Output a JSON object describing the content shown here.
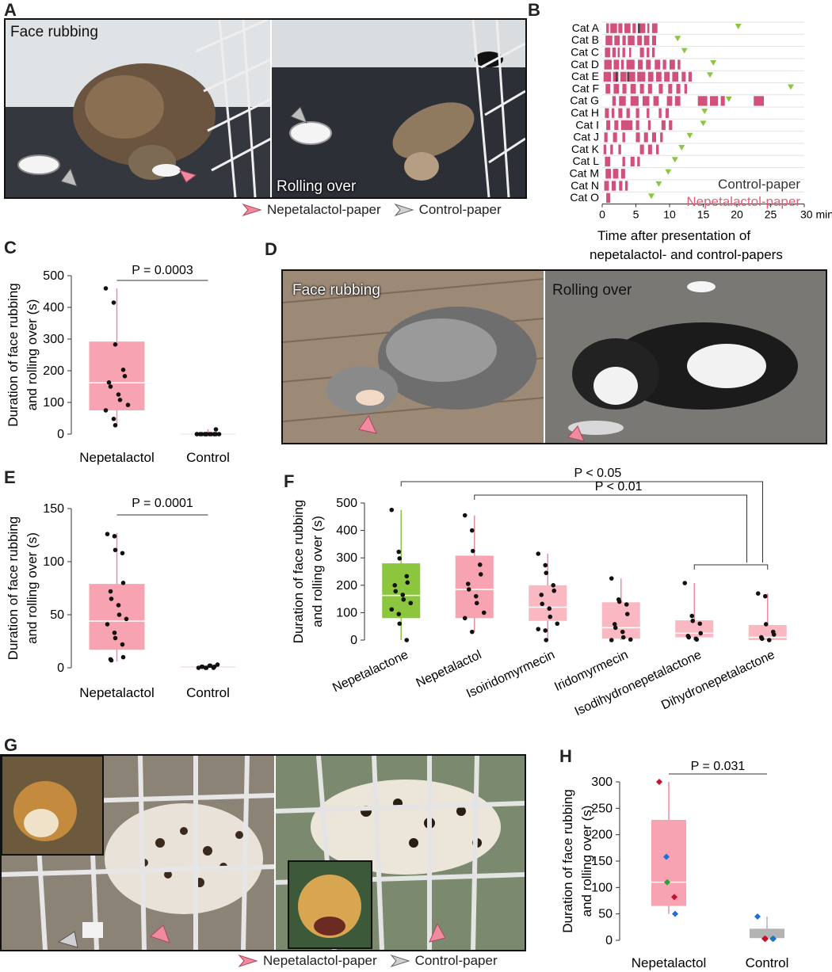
{
  "panels": {
    "A": "A",
    "B": "B",
    "C": "C",
    "D": "D",
    "E": "E",
    "F": "F",
    "G": "G",
    "H": "H"
  },
  "panelA": {
    "label_left": "Face rubbing",
    "label_right": "Rolling over",
    "legend_nepeta": "Nepetalactol-paper",
    "legend_control": "Control-paper"
  },
  "panelD": {
    "label_left": "Face rubbing",
    "label_right": "Rolling over"
  },
  "panelG": {
    "legend_nepeta": "Nepetalactol-paper",
    "legend_control": "Control-paper"
  },
  "colors": {
    "pink": "#f08a9e",
    "pink_dark": "#e0607a",
    "box_pink": "#f7a3b1",
    "box_light": "#f9b8c2",
    "green": "#8cc63f",
    "gray": "#b3b3b3",
    "gray_arrow": "#bdbdbd",
    "raster": "#d0527a",
    "triangle": "#8cc63f"
  },
  "chart_data": [
    {
      "panel": "B",
      "type": "raster",
      "categories": [
        "Cat A",
        "Cat B",
        "Cat C",
        "Cat D",
        "Cat E",
        "Cat F",
        "Cat G",
        "Cat H",
        "Cat I",
        "Cat J",
        "Cat K",
        "Cat L",
        "Cat M",
        "Cat N",
        "Cat O"
      ],
      "xticks": [
        "0",
        "5",
        "10",
        "15",
        "20",
        "25",
        "30 min"
      ],
      "xlim": [
        0,
        30
      ],
      "xlabel_line1": "Time after presentation of",
      "xlabel_line2": "nepetalactol- and control-papers",
      "legend_control": "Control-paper",
      "legend_nepeta": "Nepetalactol-paper",
      "bouts": [
        [
          [
            0.6,
            1.0
          ],
          [
            1.2,
            2.2
          ],
          [
            2.4,
            3.0
          ],
          [
            3.3,
            4.2
          ],
          [
            4.5,
            5.0
          ],
          [
            5.3,
            6.4
          ],
          [
            6.7,
            7.0
          ],
          [
            7.4,
            8.2
          ]
        ],
        [
          [
            0.5,
            1.5
          ],
          [
            1.8,
            2.6
          ],
          [
            3.0,
            3.5
          ],
          [
            3.8,
            4.8
          ],
          [
            5.2,
            5.9
          ],
          [
            6.2,
            7.0
          ],
          [
            7.4,
            8.0
          ]
        ],
        [
          [
            0.4,
            1.2
          ],
          [
            1.5,
            2.0
          ],
          [
            2.3,
            2.6
          ],
          [
            3.0,
            3.4
          ],
          [
            4.0,
            4.3
          ],
          [
            5.6,
            6.2
          ],
          [
            6.6,
            7.0
          ],
          [
            7.4,
            7.8
          ]
        ],
        [
          [
            0.3,
            1.4
          ],
          [
            1.7,
            2.5
          ],
          [
            2.8,
            3.2
          ],
          [
            3.6,
            4.8
          ],
          [
            5.3,
            6.0
          ],
          [
            6.5,
            7.2
          ],
          [
            7.8,
            8.6
          ],
          [
            9.0,
            9.5
          ],
          [
            10.0,
            10.8
          ],
          [
            11.2,
            11.6
          ]
        ],
        [
          [
            0.2,
            1.3
          ],
          [
            1.6,
            2.4
          ],
          [
            2.7,
            3.6
          ],
          [
            4.0,
            4.9
          ],
          [
            5.2,
            6.4
          ],
          [
            6.8,
            7.6
          ],
          [
            8.0,
            8.8
          ],
          [
            9.2,
            10.0
          ],
          [
            10.4,
            11.3
          ],
          [
            11.8,
            12.4
          ],
          [
            12.8,
            13.3
          ]
        ],
        [
          [
            0.5,
            1.2
          ],
          [
            1.7,
            2.5
          ],
          [
            3.0,
            3.6
          ],
          [
            4.2,
            5.0
          ],
          [
            5.6,
            6.2
          ],
          [
            6.8,
            7.4
          ],
          [
            8.4,
            9.0
          ],
          [
            9.8,
            10.4
          ],
          [
            11.0,
            11.6
          ],
          [
            12.2,
            12.6
          ]
        ],
        [
          [
            1.5,
            2.0
          ],
          [
            2.5,
            3.5
          ],
          [
            4.2,
            5.4
          ],
          [
            6.0,
            7.0
          ],
          [
            7.6,
            8.4
          ],
          [
            9.6,
            10.4
          ],
          [
            10.8,
            11.6
          ],
          [
            14.2,
            15.6
          ],
          [
            16.0,
            17.2
          ],
          [
            17.6,
            18.2
          ],
          [
            22.5,
            24.0
          ]
        ],
        [
          [
            0.4,
            1.0
          ],
          [
            1.4,
            1.8
          ],
          [
            2.4,
            3.0
          ],
          [
            3.6,
            4.1
          ],
          [
            5.0,
            5.5
          ],
          [
            6.6,
            7.0
          ],
          [
            8.4,
            8.8
          ],
          [
            9.4,
            9.9
          ]
        ],
        [
          [
            0.6,
            1.2
          ],
          [
            1.8,
            2.4
          ],
          [
            2.8,
            4.5
          ],
          [
            5.0,
            5.5
          ],
          [
            6.8,
            7.2
          ],
          [
            8.8,
            9.4
          ],
          [
            9.9,
            10.4
          ]
        ],
        [
          [
            0.3,
            0.8
          ],
          [
            1.6,
            2.2
          ],
          [
            3.0,
            3.4
          ],
          [
            5.0,
            5.6
          ],
          [
            6.2,
            6.8
          ],
          [
            7.4,
            8.0
          ],
          [
            8.6,
            9.0
          ]
        ],
        [
          [
            0.2,
            0.6
          ],
          [
            1.2,
            1.6
          ],
          [
            2.4,
            2.8
          ],
          [
            5.6,
            6.2
          ],
          [
            6.8,
            7.4
          ],
          [
            8.0,
            8.4
          ]
        ],
        [
          [
            0.4,
            1.2
          ],
          [
            3.0,
            3.4
          ],
          [
            4.2,
            4.8
          ],
          [
            5.2,
            5.6
          ]
        ],
        [
          [
            0.5,
            1.3
          ],
          [
            1.6,
            2.4
          ],
          [
            2.8,
            3.4
          ]
        ],
        [
          [
            0.3,
            1.0
          ],
          [
            1.4,
            2.0
          ],
          [
            2.5,
            3.0
          ],
          [
            3.4,
            3.8
          ]
        ],
        [
          [
            0.6,
            1.2
          ]
        ]
      ],
      "control_bouts": [
        [
          [
            5.3,
            5.6
          ]
        ],
        [],
        [],
        [],
        [
          [
            2.0,
            2.3
          ],
          [
            3.7,
            4.0
          ]
        ],
        [],
        [],
        [],
        [],
        [],
        [],
        [],
        [],
        [],
        []
      ],
      "end_markers": [
        20.2,
        11.2,
        12.2,
        16.5,
        16.0,
        28.0,
        18.8,
        15.2,
        15.0,
        13.0,
        11.8,
        10.8,
        9.8,
        8.4,
        7.3
      ]
    },
    {
      "panel": "C",
      "type": "box",
      "categories": [
        "Nepetalactol",
        "Control"
      ],
      "ylabel_line1": "Duration of face rubbing",
      "ylabel_line2": "and rolling over (s)",
      "ylim": [
        0,
        500
      ],
      "yticks": [
        "0",
        "100",
        "200",
        "300",
        "400",
        "500"
      ],
      "pvalue": "P = 0.0003",
      "boxes": [
        {
          "q1": 75,
          "median": 162,
          "q3": 292,
          "whisker_low": 28,
          "whisker_high": 460
        },
        {
          "q1": 0,
          "median": 0,
          "q3": 0,
          "whisker_low": 0,
          "whisker_high": 15
        }
      ],
      "points": [
        [
          460,
          415,
          283,
          203,
          183,
          163,
          150,
          125,
          108,
          92,
          75,
          48,
          28
        ],
        [
          0,
          0,
          0,
          0,
          0,
          0,
          0,
          0,
          0,
          0,
          0,
          0,
          0,
          0,
          15
        ]
      ]
    },
    {
      "panel": "E",
      "type": "box",
      "categories": [
        "Nepetalactol",
        "Control"
      ],
      "ylabel_line1": "Duration of face rubbing",
      "ylabel_line2": "and rolling over (s)",
      "ylim": [
        0,
        150
      ],
      "yticks": [
        "0",
        "50",
        "100",
        "150"
      ],
      "pvalue": "P = 0.0001",
      "boxes": [
        {
          "q1": 17,
          "median": 44,
          "q3": 79,
          "whisker_low": 6,
          "whisker_high": 127
        },
        {
          "q1": 0,
          "median": 0,
          "q3": 1,
          "whisker_low": 0,
          "whisker_high": 3
        }
      ],
      "points": [
        [
          126,
          124,
          111,
          108,
          80,
          72,
          65,
          59,
          50,
          46,
          41,
          33,
          28,
          22,
          10,
          8,
          7
        ],
        [
          0,
          0,
          0,
          0,
          1,
          1,
          1,
          2,
          2,
          3
        ]
      ]
    },
    {
      "panel": "F",
      "type": "box",
      "categories": [
        "Nepetalactone",
        "Nepetalactol",
        "Isoiridomyrmecin",
        "Iridomyrmecin",
        "Isodihydronepetalactone",
        "Dihydronepetalactone"
      ],
      "ylabel_line1": "Duration of face rubbing",
      "ylabel_line2": "and rolling over (s)",
      "ylim": [
        0,
        500
      ],
      "yticks": [
        "0",
        "100",
        "200",
        "300",
        "400",
        "500"
      ],
      "p1": "P < 0.05",
      "p2": "P < 0.01",
      "boxes": [
        {
          "q1": 80,
          "median": 163,
          "q3": 280,
          "whisker_low": 0,
          "whisker_high": 475,
          "color": "green"
        },
        {
          "q1": 80,
          "median": 185,
          "q3": 308,
          "whisker_low": 30,
          "whisker_high": 455,
          "color": "pink"
        },
        {
          "q1": 70,
          "median": 120,
          "q3": 200,
          "whisker_low": 0,
          "whisker_high": 315,
          "color": "light"
        },
        {
          "q1": 5,
          "median": 45,
          "q3": 138,
          "whisker_low": 0,
          "whisker_high": 225,
          "color": "light"
        },
        {
          "q1": 10,
          "median": 25,
          "q3": 72,
          "whisker_low": 0,
          "whisker_high": 208,
          "color": "light"
        },
        {
          "q1": 0,
          "median": 10,
          "q3": 55,
          "whisker_low": 0,
          "whisker_high": 170,
          "color": "light"
        }
      ],
      "points": [
        [
          475,
          322,
          298,
          233,
          210,
          200,
          178,
          165,
          148,
          135,
          112,
          95,
          60,
          0
        ],
        [
          455,
          400,
          325,
          275,
          240,
          205,
          185,
          160,
          135,
          100,
          80,
          30
        ],
        [
          315,
          273,
          245,
          200,
          180,
          165,
          132,
          115,
          85,
          60,
          40,
          35,
          0
        ],
        [
          225,
          148,
          140,
          130,
          95,
          58,
          45,
          30,
          10,
          2,
          0
        ],
        [
          208,
          88,
          70,
          60,
          25,
          15,
          10,
          5,
          2
        ],
        [
          170,
          160,
          58,
          30,
          20,
          10,
          5,
          0
        ]
      ]
    },
    {
      "panel": "H",
      "type": "box",
      "categories": [
        "Nepetalactol",
        "Control"
      ],
      "ylabel_line1": "Duration of face rubbing",
      "ylabel_line2": "and rolling over (s)",
      "ylim": [
        0,
        300
      ],
      "yticks": [
        "0",
        "50",
        "100",
        "150",
        "200",
        "250",
        "300"
      ],
      "pvalue": "P = 0.031",
      "boxes": [
        {
          "q1": 65,
          "median": 110,
          "q3": 228,
          "whisker_low": 50,
          "whisker_high": 300,
          "color": "pink"
        },
        {
          "q1": 3,
          "median": 3,
          "q3": 22,
          "whisker_low": 0,
          "whisker_high": 45,
          "color": "gray"
        }
      ],
      "points": [
        [
          {
            "v": 300,
            "c": "#c8102e"
          },
          {
            "v": 158,
            "c": "#1e6fd9"
          },
          {
            "v": 110,
            "c": "#2e9e3e"
          },
          {
            "v": 82,
            "c": "#c8102e"
          },
          {
            "v": 50,
            "c": "#1e6fd9"
          }
        ],
        [
          {
            "v": 45,
            "c": "#1e6fd9"
          },
          {
            "v": 3,
            "c": "#c8102e"
          },
          {
            "v": 3,
            "c": "#c8102e"
          },
          {
            "v": 3,
            "c": "#2e9e3e"
          },
          {
            "v": 3,
            "c": "#1e6fd9"
          }
        ]
      ]
    }
  ]
}
